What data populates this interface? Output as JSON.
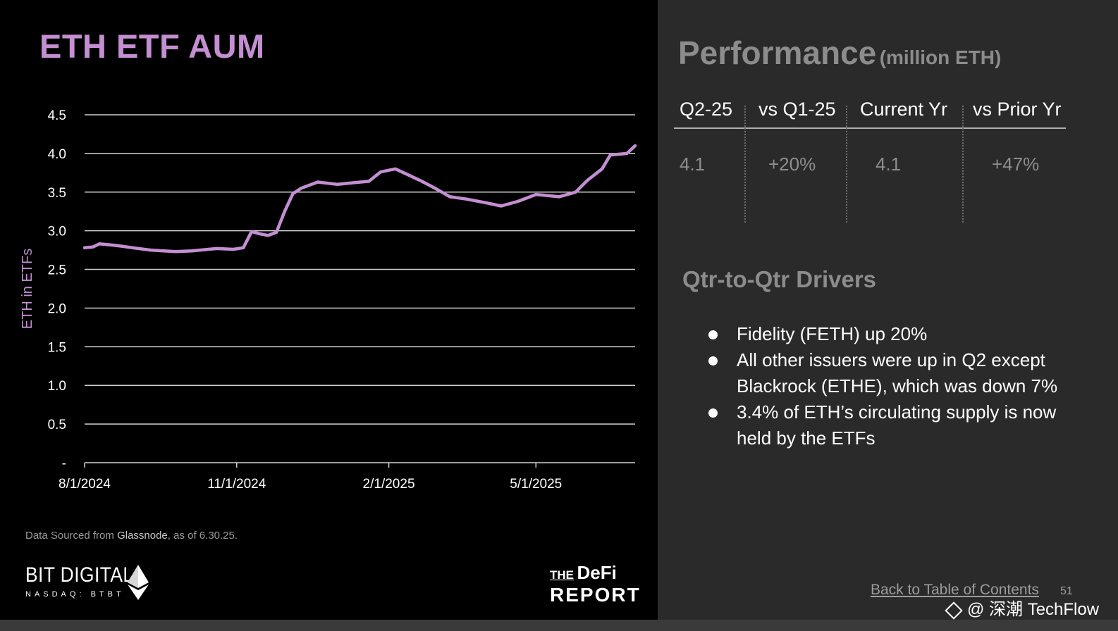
{
  "chart_title": "ETH ETF AUM",
  "chart_data": {
    "type": "line",
    "title": "ETH ETF AUM",
    "ylabel": "ETH in ETFs",
    "xlabel": "",
    "ylim": [
      0,
      4.5
    ],
    "yticks": [
      "-",
      "0.5",
      "1.0",
      "1.5",
      "2.0",
      "2.5",
      "3.0",
      "3.5",
      "4.0",
      "4.5"
    ],
    "xticks": [
      "8/1/2024",
      "11/1/2024",
      "2/1/2025",
      "5/1/2025"
    ],
    "x_range": [
      "2024-08-01",
      "2025-06-30"
    ],
    "grid": true,
    "line_color": "#c48fd2",
    "series": [
      {
        "x": [
          "2024-08-01",
          "2024-08-06",
          "2024-08-10",
          "2024-08-20",
          "2024-08-30",
          "2024-09-10",
          "2024-09-25",
          "2024-10-05",
          "2024-10-20",
          "2024-10-30",
          "2024-11-05",
          "2024-11-10",
          "2024-11-15",
          "2024-11-20",
          "2024-11-25",
          "2024-11-30",
          "2024-12-05",
          "2024-12-10",
          "2024-12-20",
          "2025-01-01",
          "2025-01-10",
          "2025-01-20",
          "2025-01-27",
          "2025-02-05",
          "2025-02-20",
          "2025-03-01",
          "2025-03-10",
          "2025-03-20",
          "2025-04-01",
          "2025-04-10",
          "2025-04-20",
          "2025-04-25",
          "2025-05-01",
          "2025-05-15",
          "2025-05-25",
          "2025-06-01",
          "2025-06-10",
          "2025-06-15",
          "2025-06-25",
          "2025-06-30"
        ],
        "y": [
          2.78,
          2.79,
          2.83,
          2.81,
          2.78,
          2.75,
          2.73,
          2.74,
          2.77,
          2.76,
          2.78,
          2.99,
          2.96,
          2.94,
          2.98,
          3.25,
          3.48,
          3.55,
          3.63,
          3.6,
          3.62,
          3.64,
          3.76,
          3.8,
          3.65,
          3.55,
          3.44,
          3.41,
          3.36,
          3.32,
          3.38,
          3.42,
          3.47,
          3.44,
          3.5,
          3.65,
          3.8,
          3.98,
          4.0,
          4.1
        ]
      }
    ]
  },
  "source": {
    "prefix": "Data Sourced from ",
    "name": "Glassnode",
    "suffix": ", as of 6.30.25."
  },
  "brand": {
    "name": "BIT DIGITAL",
    "ticker": "NASDAQ: BTBT",
    "partner_the": "THE",
    "partner_defi": "DeFi",
    "partner_report": "REPORT"
  },
  "performance": {
    "title": "Performance",
    "unit": "(million ETH)",
    "headers": [
      "Q2-25",
      "vs Q1-25",
      "Current Yr",
      "vs Prior Yr"
    ],
    "values": [
      "4.1",
      "+20%",
      "4.1",
      "+47%"
    ]
  },
  "drivers": {
    "title": "Qtr-to-Qtr Drivers",
    "bullets": [
      "Fidelity (FETH) up 20%",
      "All other issuers were up in Q2 except Blackrock (ETHE), which was down 7%",
      "3.4% of ETH’s circulating supply is now held by the ETFs"
    ]
  },
  "footer": {
    "toc_link": "Back to Table of Contents",
    "page_number": "51",
    "watermark": "@ 深潮 TechFlow"
  }
}
